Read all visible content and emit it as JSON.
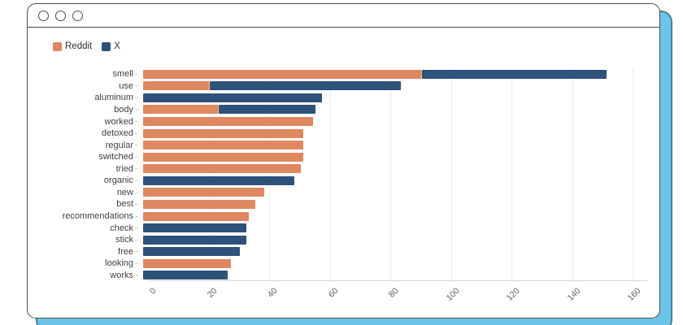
{
  "window": {
    "traffic_lights": [
      "close",
      "minimize",
      "maximize"
    ],
    "accent_color": "#6CC5E9",
    "accent_border_color": "#4A7E95",
    "border_color": "#4d4d4d"
  },
  "legend": {
    "items": [
      {
        "label": "Reddit",
        "color": "#DF875F"
      },
      {
        "label": "X",
        "color": "#2E527A"
      }
    ]
  },
  "chart_data": {
    "type": "bar",
    "orientation": "horizontal",
    "stacked": true,
    "title": "",
    "xlabel": "",
    "ylabel": "",
    "xlim": [
      0,
      160
    ],
    "xticks": [
      0,
      20,
      40,
      60,
      80,
      100,
      120,
      140,
      160
    ],
    "grid": true,
    "legend_position": "top-left",
    "categories": [
      "smell",
      "use",
      "aluminum",
      "body",
      "worked",
      "detoxed",
      "regular",
      "switched",
      "tried",
      "organic",
      "new",
      "best",
      "recommendations",
      "check",
      "stick",
      "free",
      "looking",
      "works"
    ],
    "series": [
      {
        "name": "Reddit",
        "color": "#DF875F",
        "values": [
          92,
          22,
          0,
          25,
          56,
          53,
          53,
          53,
          52,
          0,
          40,
          37,
          35,
          0,
          0,
          0,
          29,
          0
        ]
      },
      {
        "name": "X",
        "color": "#2E527A",
        "values": [
          61,
          63,
          59,
          32,
          0,
          0,
          0,
          0,
          0,
          50,
          0,
          0,
          0,
          34,
          34,
          32,
          0,
          28
        ]
      }
    ]
  }
}
